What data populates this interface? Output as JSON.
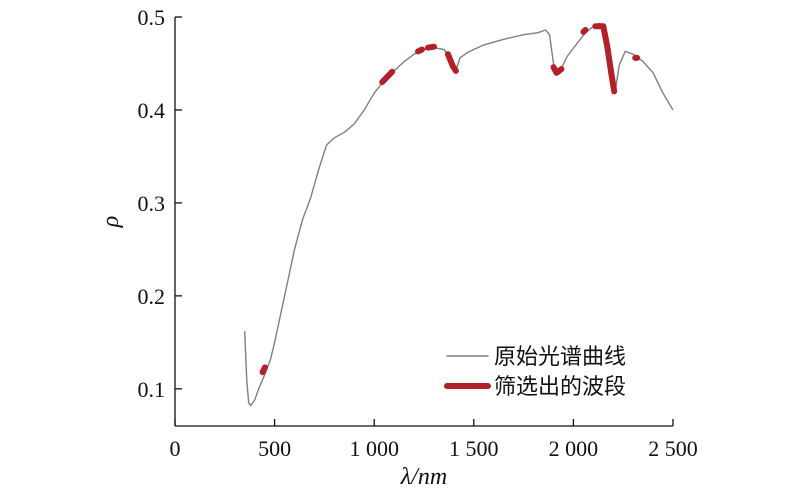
{
  "chart_data": {
    "type": "line",
    "xlabel": "λ/nm",
    "ylabel": "ρ",
    "xlim": [
      0,
      2500
    ],
    "ylim": [
      0.06,
      0.5
    ],
    "x_ticks": [
      0,
      500,
      1000,
      1500,
      2000,
      2500
    ],
    "x_tick_labels": [
      "0",
      "500",
      "1 000",
      "1 500",
      "2 000",
      "2 500"
    ],
    "y_ticks": [
      0.1,
      0.2,
      0.3,
      0.4,
      0.5
    ],
    "y_tick_labels": [
      "0.1",
      "0.2",
      "0.3",
      "0.4",
      "0.5"
    ],
    "grid": false,
    "legend_position": "bottom-right",
    "series": [
      {
        "name": "原始光谱曲线",
        "color": "#7f7f7f",
        "style": "thin-line",
        "points": [
          [
            350,
            0.162
          ],
          [
            360,
            0.11
          ],
          [
            370,
            0.085
          ],
          [
            380,
            0.082
          ],
          [
            400,
            0.088
          ],
          [
            420,
            0.1
          ],
          [
            450,
            0.115
          ],
          [
            480,
            0.132
          ],
          [
            500,
            0.15
          ],
          [
            530,
            0.18
          ],
          [
            560,
            0.21
          ],
          [
            600,
            0.25
          ],
          [
            640,
            0.282
          ],
          [
            680,
            0.305
          ],
          [
            720,
            0.335
          ],
          [
            760,
            0.362
          ],
          [
            800,
            0.37
          ],
          [
            850,
            0.376
          ],
          [
            900,
            0.385
          ],
          [
            950,
            0.4
          ],
          [
            1000,
            0.418
          ],
          [
            1050,
            0.432
          ],
          [
            1100,
            0.442
          ],
          [
            1150,
            0.452
          ],
          [
            1200,
            0.46
          ],
          [
            1250,
            0.465
          ],
          [
            1300,
            0.467
          ],
          [
            1350,
            0.465
          ],
          [
            1370,
            0.46
          ],
          [
            1390,
            0.45
          ],
          [
            1410,
            0.442
          ],
          [
            1430,
            0.456
          ],
          [
            1470,
            0.462
          ],
          [
            1550,
            0.47
          ],
          [
            1650,
            0.476
          ],
          [
            1750,
            0.481
          ],
          [
            1820,
            0.483
          ],
          [
            1860,
            0.486
          ],
          [
            1880,
            0.481
          ],
          [
            1900,
            0.45
          ],
          [
            1920,
            0.44
          ],
          [
            1940,
            0.445
          ],
          [
            1970,
            0.458
          ],
          [
            2020,
            0.472
          ],
          [
            2060,
            0.483
          ],
          [
            2100,
            0.49
          ],
          [
            2130,
            0.493
          ],
          [
            2150,
            0.49
          ],
          [
            2170,
            0.47
          ],
          [
            2190,
            0.44
          ],
          [
            2210,
            0.42
          ],
          [
            2230,
            0.448
          ],
          [
            2260,
            0.463
          ],
          [
            2300,
            0.46
          ],
          [
            2350,
            0.452
          ],
          [
            2400,
            0.44
          ],
          [
            2450,
            0.418
          ],
          [
            2500,
            0.4
          ]
        ]
      },
      {
        "name": "筛选出的波段",
        "color": "#b22028",
        "style": "thick-segments",
        "segments": [
          [
            [
              440,
              0.118
            ],
            [
              452,
              0.123
            ]
          ],
          [
            [
              1040,
              0.43
            ],
            [
              1090,
              0.441
            ]
          ],
          [
            [
              1220,
              0.463
            ],
            [
              1240,
              0.465
            ]
          ],
          [
            [
              1270,
              0.467
            ],
            [
              1300,
              0.468
            ]
          ],
          [
            [
              1370,
              0.46
            ],
            [
              1395,
              0.447
            ],
            [
              1410,
              0.442
            ]
          ],
          [
            [
              1900,
              0.446
            ],
            [
              1915,
              0.44
            ],
            [
              1940,
              0.444
            ]
          ],
          [
            [
              2050,
              0.484
            ],
            [
              2060,
              0.486
            ]
          ],
          [
            [
              2110,
              0.49
            ],
            [
              2150,
              0.49
            ],
            [
              2170,
              0.468
            ],
            [
              2190,
              0.44
            ],
            [
              2205,
              0.42
            ]
          ],
          [
            [
              2310,
              0.456
            ],
            [
              2320,
              0.456
            ]
          ]
        ]
      }
    ]
  }
}
